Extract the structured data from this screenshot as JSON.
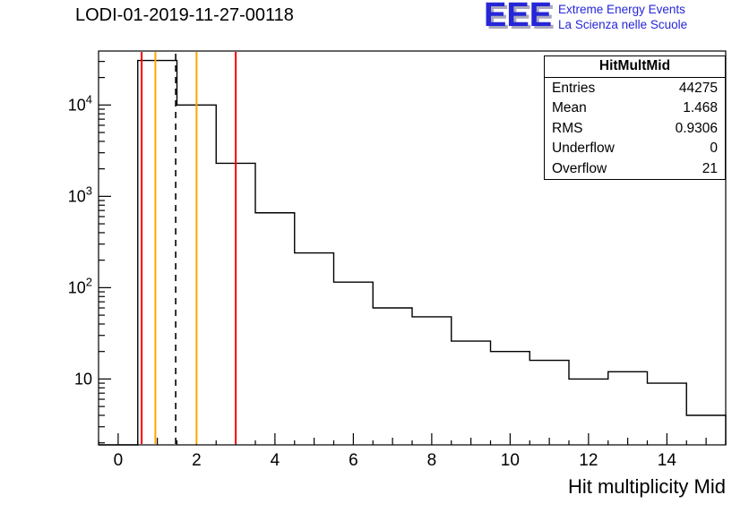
{
  "header": {
    "logo": {
      "text": "EEE",
      "line1": "Extreme Energy Events",
      "line2": "La Scienza nelle Scuole",
      "color": "#2626d8"
    }
  },
  "stats_box": {
    "title": "HitMultMid",
    "rows": [
      {
        "label": "Entries",
        "value": "44275"
      },
      {
        "label": "Mean",
        "value": "1.468"
      },
      {
        "label": "RMS",
        "value": "0.9306"
      },
      {
        "label": "Underflow",
        "value": "0"
      },
      {
        "label": "Overflow",
        "value": "21"
      }
    ]
  },
  "chart_data": {
    "type": "bar",
    "title": "LODI-01-2019-11-27-00118",
    "xlabel": "Hit multiplicity Mid",
    "ylabel": "",
    "y_scale": "log",
    "x_range": [
      -0.5,
      15.5
    ],
    "y_range": [
      1.9,
      39000
    ],
    "grid": false,
    "x_ticks": [
      0,
      2,
      4,
      6,
      8,
      10,
      12,
      14
    ],
    "y_tick_labels": [
      {
        "value": 10,
        "base": "10",
        "exp": ""
      },
      {
        "value": 100,
        "base": "10",
        "exp": "2"
      },
      {
        "value": 1000,
        "base": "10",
        "exp": "3"
      },
      {
        "value": 10000,
        "base": "10",
        "exp": "4"
      }
    ],
    "bins": {
      "start": 0.5,
      "width": 1,
      "centers": [
        1,
        2,
        3,
        4,
        5,
        6,
        7,
        8,
        9,
        10,
        11,
        12,
        13,
        14,
        15
      ],
      "values": [
        30700,
        10000,
        2300,
        660,
        240,
        115,
        60,
        48,
        26,
        20,
        16,
        10,
        12,
        9,
        4
      ]
    },
    "line_color": "#000000",
    "vlines": [
      {
        "x": 0.6,
        "color": "#ff0000",
        "style": "solid",
        "name": "red-cut-line-low"
      },
      {
        "x": 0.95,
        "color": "#ffa500",
        "style": "solid",
        "name": "orange-cut-line-low"
      },
      {
        "x": 1.468,
        "color": "#000000",
        "style": "dashed",
        "name": "mean-dashed-line"
      },
      {
        "x": 2.0,
        "color": "#ffa500",
        "style": "solid",
        "name": "orange-cut-line-high"
      },
      {
        "x": 3.0,
        "color": "#ff0000",
        "style": "solid",
        "name": "red-cut-line-high"
      }
    ]
  }
}
